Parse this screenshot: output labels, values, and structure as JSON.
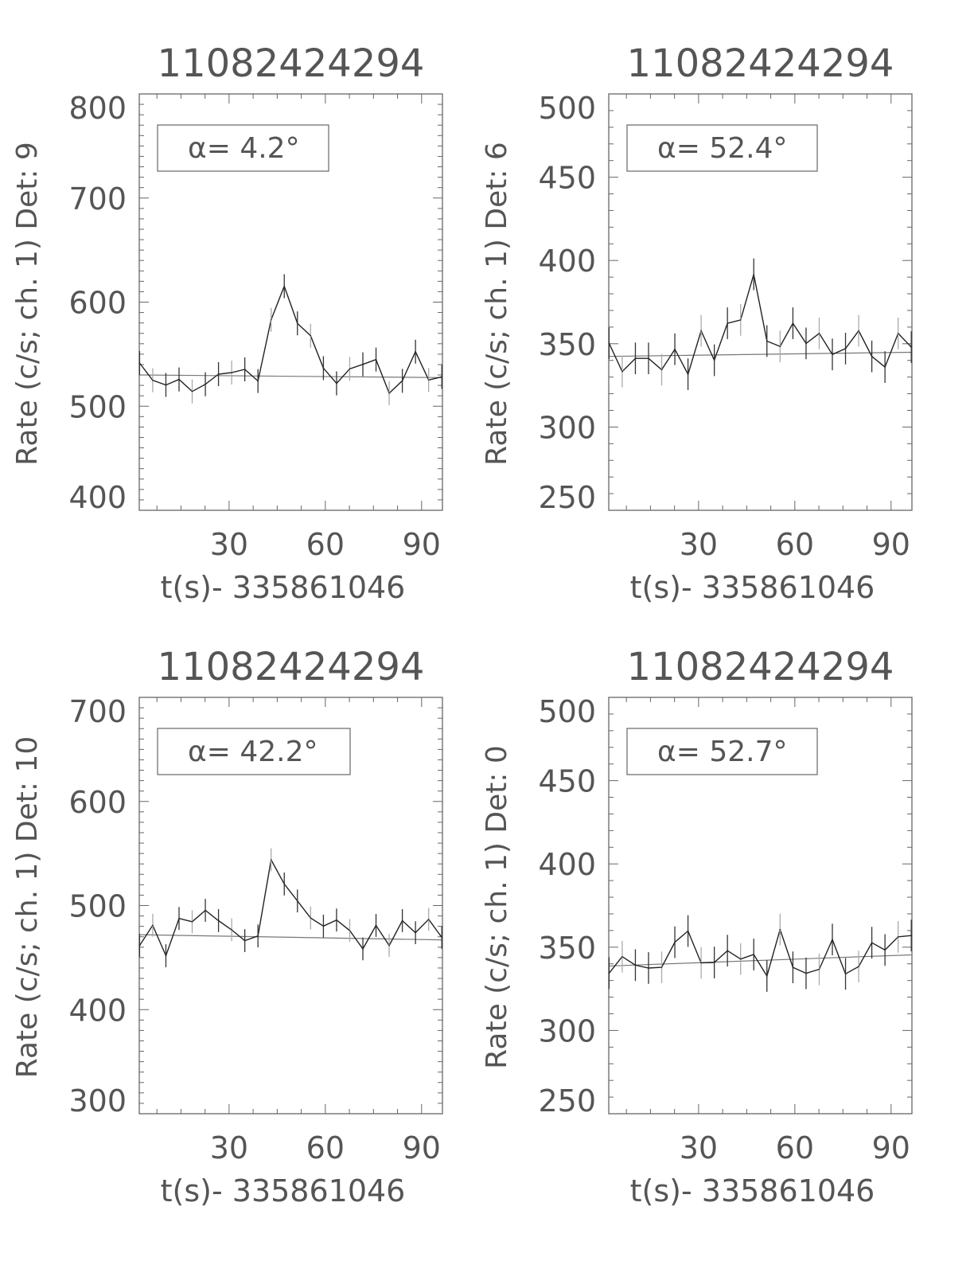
{
  "chart_data": [
    {
      "type": "line",
      "title": "11082424294",
      "xlabel": "t(s)- 335861046",
      "ylabel": "Rate (c/s; ch. 1) Det: 9",
      "annotation": "α= 4.2°",
      "xlim": [
        2,
        96.5
      ],
      "ylim": [
        400,
        800
      ],
      "xticks": [
        30,
        60,
        90
      ],
      "xtick_labels": [
        "30",
        "60",
        "90"
      ],
      "yticks": [
        400,
        500,
        600,
        700,
        800
      ],
      "ytick_labels": [
        "400",
        "500",
        "600",
        "700",
        "800"
      ],
      "x": [
        2.1,
        6.2,
        10.3,
        14.4,
        18.5,
        22.6,
        26.7,
        30.8,
        34.9,
        39.0,
        43.1,
        47.2,
        51.3,
        55.4,
        59.4,
        63.5,
        67.6,
        71.7,
        75.8,
        79.9,
        84.0,
        88.1,
        92.2,
        96.3
      ],
      "series": [
        {
          "values": [
            541.5,
            524.9,
            520.4,
            525.7,
            514.2,
            521.1,
            530.8,
            532.3,
            535.4,
            524.2,
            583.0,
            615.3,
            579.6,
            567.7,
            536.6,
            521.9,
            535.9,
            540.2,
            544.8,
            512.5,
            524.4,
            552.4,
            525.2,
            528.2
          ],
          "error": 11.5
        }
      ],
      "background": {
        "x": [
          2,
          96.5
        ],
        "values": [
          530.0,
          527.5
        ]
      }
    },
    {
      "type": "line",
      "title": "11082424294",
      "xlabel": "t(s)- 335861046",
      "ylabel": "Rate (c/s; ch. 1) Det: 6",
      "annotation": "α= 52.4°",
      "xlim": [
        2,
        96.5
      ],
      "ylim": [
        250,
        500
      ],
      "xticks": [
        30,
        60,
        90
      ],
      "xtick_labels": [
        "30",
        "60",
        "90"
      ],
      "yticks": [
        250,
        300,
        350,
        400,
        450,
        500
      ],
      "ytick_labels": [
        "250",
        "300",
        "350",
        "400",
        "450",
        "500"
      ],
      "x": [
        2.1,
        6.2,
        10.3,
        14.4,
        18.5,
        22.6,
        26.7,
        30.8,
        34.9,
        39.0,
        43.1,
        47.2,
        51.3,
        55.4,
        59.4,
        63.5,
        67.6,
        71.7,
        75.8,
        79.9,
        84.0,
        88.1,
        92.2,
        96.3
      ],
      "series": [
        {
          "values": [
            350.3,
            333.3,
            341.2,
            341.2,
            334.4,
            346.7,
            331.7,
            357.8,
            340.1,
            362.3,
            364.3,
            391.7,
            351.6,
            348.4,
            362.3,
            350.2,
            356.2,
            343.6,
            347.1,
            357.8,
            342.4,
            336.0,
            356.2,
            348.0
          ],
          "error": 9.5
        }
      ],
      "background": {
        "x": [
          2,
          96.5
        ],
        "values": [
          342.4,
          344.9
        ]
      }
    },
    {
      "type": "line",
      "title": "11082424294",
      "xlabel": "t(s)- 335861046",
      "ylabel": "Rate (c/s; ch. 1) Det: 10",
      "annotation": "α= 42.2°",
      "xlim": [
        2,
        96.5
      ],
      "ylim": [
        300,
        700
      ],
      "xticks": [
        30,
        60,
        90
      ],
      "xtick_labels": [
        "30",
        "60",
        "90"
      ],
      "yticks": [
        300,
        400,
        500,
        600,
        700
      ],
      "ytick_labels": [
        "300",
        "400",
        "500",
        "600",
        "700"
      ],
      "x": [
        2.1,
        6.2,
        10.3,
        14.4,
        18.5,
        22.6,
        26.7,
        30.8,
        34.9,
        39.0,
        43.1,
        47.2,
        51.3,
        55.4,
        59.4,
        63.5,
        67.6,
        71.7,
        75.8,
        79.9,
        84.0,
        88.1,
        92.2,
        96.3
      ],
      "series": [
        {
          "values": [
            461.6,
            481.0,
            451.8,
            487.6,
            484.5,
            495.4,
            485.5,
            476.7,
            466.3,
            470.8,
            544.0,
            520.7,
            504.4,
            488.1,
            480.3,
            486.1,
            476.0,
            458.4,
            480.9,
            461.6,
            485.5,
            473.9,
            486.8,
            469.4
          ],
          "error": 11.0
        }
      ],
      "background": {
        "x": [
          2,
          96.5
        ],
        "values": [
          472.0,
          467.0
        ]
      }
    },
    {
      "type": "line",
      "title": "11082424294",
      "xlabel": "t(s)- 335861046",
      "ylabel": "Rate (c/s; ch. 1) Det: 0",
      "annotation": "α= 52.7°",
      "xlim": [
        2,
        96.5
      ],
      "ylim": [
        250,
        500
      ],
      "xticks": [
        30,
        60,
        90
      ],
      "xtick_labels": [
        "30",
        "60",
        "90"
      ],
      "yticks": [
        250,
        300,
        350,
        400,
        450,
        500
      ],
      "ytick_labels": [
        "250",
        "300",
        "350",
        "400",
        "450",
        "500"
      ],
      "x": [
        2.1,
        6.2,
        10.3,
        14.4,
        18.5,
        22.6,
        26.7,
        30.8,
        34.9,
        39.0,
        43.1,
        47.2,
        51.3,
        55.4,
        59.4,
        63.5,
        67.6,
        71.7,
        75.8,
        79.9,
        84.0,
        88.1,
        92.2,
        96.3
      ],
      "series": [
        {
          "values": [
            334.4,
            344.3,
            339.2,
            337.5,
            337.9,
            353.0,
            359.7,
            340.6,
            340.8,
            347.9,
            342.9,
            345.6,
            332.7,
            360.6,
            337.9,
            334.3,
            336.7,
            354.6,
            334.0,
            338.4,
            352.7,
            348.3,
            356.2,
            357.0
          ],
          "error": 9.5
        }
      ],
      "background": {
        "x": [
          2,
          96.5
        ],
        "values": [
          338.7,
          345.4
        ]
      }
    }
  ]
}
